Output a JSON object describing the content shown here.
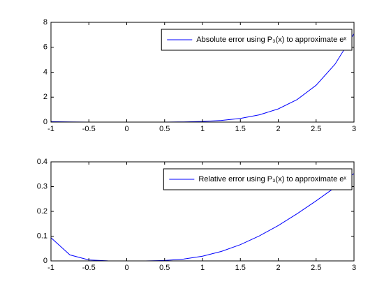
{
  "chart_data": [
    {
      "type": "line",
      "x": [
        -1,
        -0.75,
        -0.5,
        -0.25,
        0,
        0.25,
        0.5,
        0.75,
        1,
        1.25,
        1.5,
        1.75,
        2,
        2.25,
        2.5,
        2.75,
        3
      ],
      "series": [
        {
          "name": "Absolute error using P₃(x) to approximate eˣ",
          "color": "#0000ff",
          "values": [
            0.0345,
            0.0115,
            0.0024,
            0.0002,
            0,
            0.0001,
            0.0029,
            0.0154,
            0.0516,
            0.1336,
            0.2942,
            0.5801,
            1.0557,
            1.808,
            2.9533,
            4.6452,
            7.0855
          ]
        }
      ],
      "xlim": [
        -1,
        3
      ],
      "xticks": [
        -1,
        -0.5,
        0,
        0.5,
        1,
        1.5,
        2,
        2.5,
        3
      ],
      "ylim": [
        0,
        8
      ],
      "yticks": [
        0,
        2,
        4,
        6,
        8
      ],
      "legend": "upper right"
    },
    {
      "type": "line",
      "x": [
        -1,
        -0.75,
        -0.5,
        -0.25,
        0,
        0.25,
        0.5,
        0.75,
        1,
        1.25,
        1.5,
        1.75,
        2,
        2.25,
        2.5,
        2.75,
        3
      ],
      "series": [
        {
          "name": "Relative error using P₃(x) to approximate eˣ",
          "color": "#0000ff",
          "values": [
            0.0938,
            0.0243,
            0.004,
            0.0003,
            0,
            0.0001,
            0.0018,
            0.0073,
            0.019,
            0.0383,
            0.0656,
            0.1008,
            0.1429,
            0.1906,
            0.2424,
            0.297,
            0.3528
          ]
        }
      ],
      "xlim": [
        -1,
        3
      ],
      "xticks": [
        -1,
        -0.5,
        0,
        0.5,
        1,
        1.5,
        2,
        2.5,
        3
      ],
      "ylim": [
        0,
        0.4
      ],
      "yticks": [
        0,
        0.1,
        0.2,
        0.3,
        0.4
      ],
      "legend": "upper right"
    }
  ]
}
